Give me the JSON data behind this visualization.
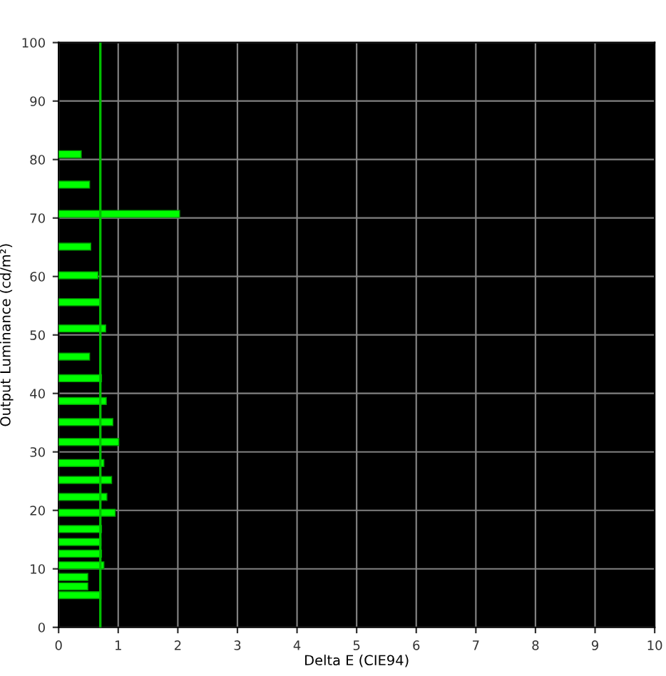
{
  "chart_data": {
    "type": "bar",
    "orientation": "horizontal",
    "xlabel": "Delta E (CIE94)",
    "ylabel": "Output Luminance (cd/m²)",
    "x": [
      80.9,
      75.7,
      70.7,
      65.1,
      60.2,
      55.6,
      51.1,
      46.3,
      42.6,
      38.7,
      35.1,
      31.7,
      28.1,
      25.2,
      22.3,
      19.6,
      16.8,
      14.6,
      12.6,
      10.6,
      8.6,
      7.0,
      5.5
    ],
    "values": [
      0.38,
      0.52,
      2.03,
      0.54,
      0.66,
      0.69,
      0.79,
      0.52,
      0.72,
      0.8,
      0.91,
      1.01,
      0.76,
      0.89,
      0.81,
      0.95,
      0.72,
      0.71,
      0.72,
      0.76,
      0.49,
      0.49,
      0.71
    ],
    "color": "#00ff00",
    "xlim": [
      0,
      10
    ],
    "xticks": [
      0,
      1,
      2,
      3,
      4,
      5,
      6,
      7,
      8,
      9,
      10
    ],
    "ylim": [
      0,
      100
    ],
    "yticks": [
      0,
      10,
      20,
      30,
      40,
      50,
      60,
      70,
      80,
      90,
      100
    ],
    "grid": true,
    "ref_lines": [
      {
        "axis": "x",
        "value": 0.7,
        "color": "#00c000"
      }
    ]
  }
}
